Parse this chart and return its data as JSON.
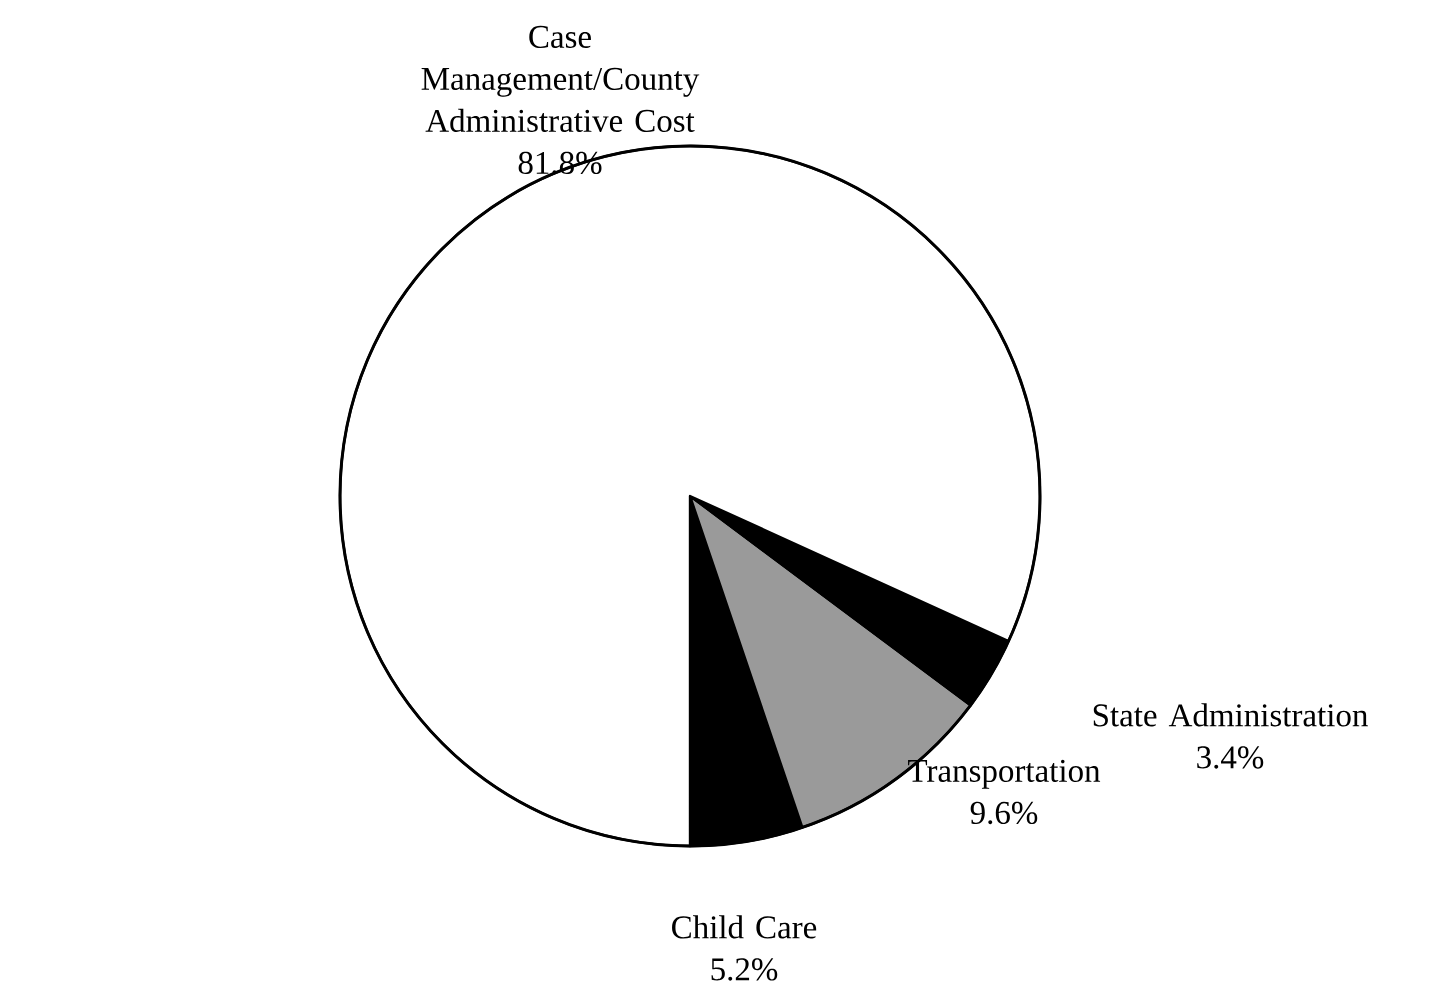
{
  "chart_data": {
    "type": "pie",
    "categories": [
      "Child Care",
      "Transportation",
      "State Administration",
      "Case Management/County Administrative Cost"
    ],
    "values": [
      5.2,
      9.6,
      3.4,
      81.8
    ],
    "value_labels": [
      "5.2%",
      "9.6%",
      "3.4%",
      "81.8%"
    ],
    "colors": [
      "#000000",
      "#9a9a9a",
      "#000000",
      "#ffffff"
    ]
  }
}
